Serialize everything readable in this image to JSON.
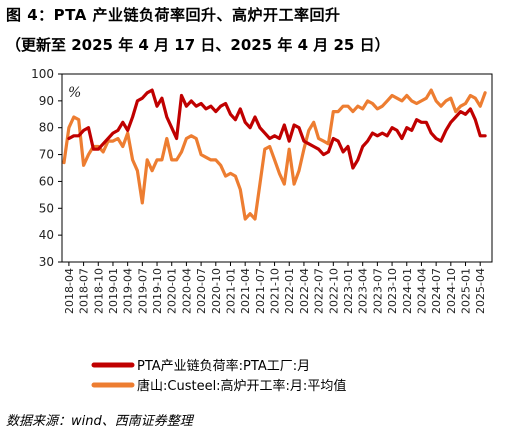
{
  "header": {
    "title": "图 4：PTA 产业链负荷率回升、高炉开工率回升",
    "subtitle": "（更新至 2025 年 4 月 17 日、2025 年 4 月 25 日）"
  },
  "footer": {
    "source": "数据来源：wind、西南证券整理"
  },
  "chart_data": {
    "type": "line",
    "unit": "%",
    "ylim": [
      30,
      100
    ],
    "yticks": [
      30,
      40,
      50,
      60,
      70,
      80,
      90,
      100
    ],
    "grid": false,
    "legend_position": "bottom",
    "x_range": [
      "2018-03",
      "2025-04"
    ],
    "xticks": [
      "2018-04",
      "2018-07",
      "2018-10",
      "2019-01",
      "2019-04",
      "2019-07",
      "2019-10",
      "2020-01",
      "2020-04",
      "2020-07",
      "2020-10",
      "2021-01",
      "2021-04",
      "2021-07",
      "2021-10",
      "2022-01",
      "2022-04",
      "2022-07",
      "2022-10",
      "2023-01",
      "2023-04",
      "2023-07",
      "2023-10",
      "2024-01",
      "2024-04",
      "2024-07",
      "2024-10",
      "2025-01",
      "2025-04"
    ],
    "series": [
      {
        "name": "PTA产业链负荷率:PTA工厂:月",
        "color": "#c00000",
        "points": [
          [
            "2018-04",
            76
          ],
          [
            "2018-05",
            77
          ],
          [
            "2018-06",
            77
          ],
          [
            "2018-07",
            79
          ],
          [
            "2018-08",
            80
          ],
          [
            "2018-09",
            72
          ],
          [
            "2018-10",
            72
          ],
          [
            "2018-11",
            74
          ],
          [
            "2018-12",
            76
          ],
          [
            "2019-01",
            78
          ],
          [
            "2019-02",
            79
          ],
          [
            "2019-03",
            82
          ],
          [
            "2019-04",
            79
          ],
          [
            "2019-05",
            84
          ],
          [
            "2019-06",
            90
          ],
          [
            "2019-07",
            91
          ],
          [
            "2019-08",
            93
          ],
          [
            "2019-09",
            94
          ],
          [
            "2019-10",
            88
          ],
          [
            "2019-11",
            91
          ],
          [
            "2019-12",
            84
          ],
          [
            "2020-01",
            80
          ],
          [
            "2020-02",
            76
          ],
          [
            "2020-03",
            92
          ],
          [
            "2020-04",
            88
          ],
          [
            "2020-05",
            90
          ],
          [
            "2020-06",
            88
          ],
          [
            "2020-07",
            89
          ],
          [
            "2020-08",
            87
          ],
          [
            "2020-09",
            88
          ],
          [
            "2020-10",
            86
          ],
          [
            "2020-11",
            88
          ],
          [
            "2020-12",
            89
          ],
          [
            "2021-01",
            85
          ],
          [
            "2021-02",
            83
          ],
          [
            "2021-03",
            87
          ],
          [
            "2021-04",
            82
          ],
          [
            "2021-05",
            80
          ],
          [
            "2021-06",
            84
          ],
          [
            "2021-07",
            80
          ],
          [
            "2021-08",
            78
          ],
          [
            "2021-09",
            76
          ],
          [
            "2021-10",
            77
          ],
          [
            "2021-11",
            76
          ],
          [
            "2021-12",
            81
          ],
          [
            "2022-01",
            75
          ],
          [
            "2022-02",
            81
          ],
          [
            "2022-03",
            80
          ],
          [
            "2022-04",
            75
          ],
          [
            "2022-05",
            74
          ],
          [
            "2022-06",
            73
          ],
          [
            "2022-07",
            72
          ],
          [
            "2022-08",
            70
          ],
          [
            "2022-09",
            71
          ],
          [
            "2022-10",
            76
          ],
          [
            "2022-11",
            75
          ],
          [
            "2022-12",
            71
          ],
          [
            "2023-01",
            73
          ],
          [
            "2023-02",
            65
          ],
          [
            "2023-03",
            68
          ],
          [
            "2023-04",
            73
          ],
          [
            "2023-05",
            75
          ],
          [
            "2023-06",
            78
          ],
          [
            "2023-07",
            77
          ],
          [
            "2023-08",
            78
          ],
          [
            "2023-09",
            77
          ],
          [
            "2023-10",
            80
          ],
          [
            "2023-11",
            79
          ],
          [
            "2023-12",
            76
          ],
          [
            "2024-01",
            80
          ],
          [
            "2024-02",
            79
          ],
          [
            "2024-03",
            83
          ],
          [
            "2024-04",
            82
          ],
          [
            "2024-05",
            82
          ],
          [
            "2024-06",
            78
          ],
          [
            "2024-07",
            76
          ],
          [
            "2024-08",
            75
          ],
          [
            "2024-09",
            79
          ],
          [
            "2024-10",
            82
          ],
          [
            "2024-11",
            84
          ],
          [
            "2024-12",
            86
          ],
          [
            "2025-01",
            85
          ],
          [
            "2025-02",
            87
          ],
          [
            "2025-03",
            83
          ],
          [
            "2025-04",
            77
          ],
          [
            "2025-05",
            77
          ]
        ]
      },
      {
        "name": "唐山:Custeel:高炉开工率:月:平均值",
        "color": "#ed7d31",
        "points": [
          [
            "2018-03",
            67
          ],
          [
            "2018-04",
            80
          ],
          [
            "2018-05",
            84
          ],
          [
            "2018-06",
            83
          ],
          [
            "2018-07",
            66
          ],
          [
            "2018-08",
            70
          ],
          [
            "2018-09",
            73
          ],
          [
            "2018-10",
            73
          ],
          [
            "2018-11",
            71
          ],
          [
            "2018-12",
            75
          ],
          [
            "2019-01",
            75
          ],
          [
            "2019-02",
            76
          ],
          [
            "2019-03",
            73
          ],
          [
            "2019-04",
            78
          ],
          [
            "2019-05",
            68
          ],
          [
            "2019-06",
            64
          ],
          [
            "2019-07",
            52
          ],
          [
            "2019-08",
            68
          ],
          [
            "2019-09",
            64
          ],
          [
            "2019-10",
            68
          ],
          [
            "2019-11",
            68
          ],
          [
            "2019-12",
            76
          ],
          [
            "2020-01",
            68
          ],
          [
            "2020-02",
            68
          ],
          [
            "2020-03",
            71
          ],
          [
            "2020-04",
            76
          ],
          [
            "2020-05",
            77
          ],
          [
            "2020-06",
            76
          ],
          [
            "2020-07",
            70
          ],
          [
            "2020-08",
            69
          ],
          [
            "2020-09",
            68
          ],
          [
            "2020-10",
            68
          ],
          [
            "2020-11",
            66
          ],
          [
            "2020-12",
            62
          ],
          [
            "2021-01",
            63
          ],
          [
            "2021-02",
            62
          ],
          [
            "2021-03",
            57
          ],
          [
            "2021-04",
            46
          ],
          [
            "2021-05",
            48
          ],
          [
            "2021-06",
            46
          ],
          [
            "2021-07",
            59
          ],
          [
            "2021-08",
            72
          ],
          [
            "2021-09",
            73
          ],
          [
            "2021-10",
            68
          ],
          [
            "2021-11",
            63
          ],
          [
            "2021-12",
            59
          ],
          [
            "2022-01",
            72
          ],
          [
            "2022-02",
            59
          ],
          [
            "2022-03",
            64
          ],
          [
            "2022-04",
            72
          ],
          [
            "2022-05",
            79
          ],
          [
            "2022-06",
            82
          ],
          [
            "2022-07",
            76
          ],
          [
            "2022-08",
            75
          ],
          [
            "2022-09",
            74
          ],
          [
            "2022-10",
            86
          ],
          [
            "2022-11",
            86
          ],
          [
            "2022-12",
            88
          ],
          [
            "2023-01",
            88
          ],
          [
            "2023-02",
            86
          ],
          [
            "2023-03",
            88
          ],
          [
            "2023-04",
            87
          ],
          [
            "2023-05",
            90
          ],
          [
            "2023-06",
            89
          ],
          [
            "2023-07",
            87
          ],
          [
            "2023-08",
            88
          ],
          [
            "2023-09",
            90
          ],
          [
            "2023-10",
            92
          ],
          [
            "2023-11",
            91
          ],
          [
            "2023-12",
            90
          ],
          [
            "2024-01",
            92
          ],
          [
            "2024-02",
            90
          ],
          [
            "2024-03",
            89
          ],
          [
            "2024-04",
            90
          ],
          [
            "2024-05",
            91
          ],
          [
            "2024-06",
            94
          ],
          [
            "2024-07",
            90
          ],
          [
            "2024-08",
            88
          ],
          [
            "2024-09",
            90
          ],
          [
            "2024-10",
            91
          ],
          [
            "2024-11",
            86
          ],
          [
            "2024-12",
            88
          ],
          [
            "2025-01",
            89
          ],
          [
            "2025-02",
            92
          ],
          [
            "2025-03",
            91
          ],
          [
            "2025-04",
            88
          ],
          [
            "2025-05",
            93
          ]
        ]
      }
    ]
  }
}
